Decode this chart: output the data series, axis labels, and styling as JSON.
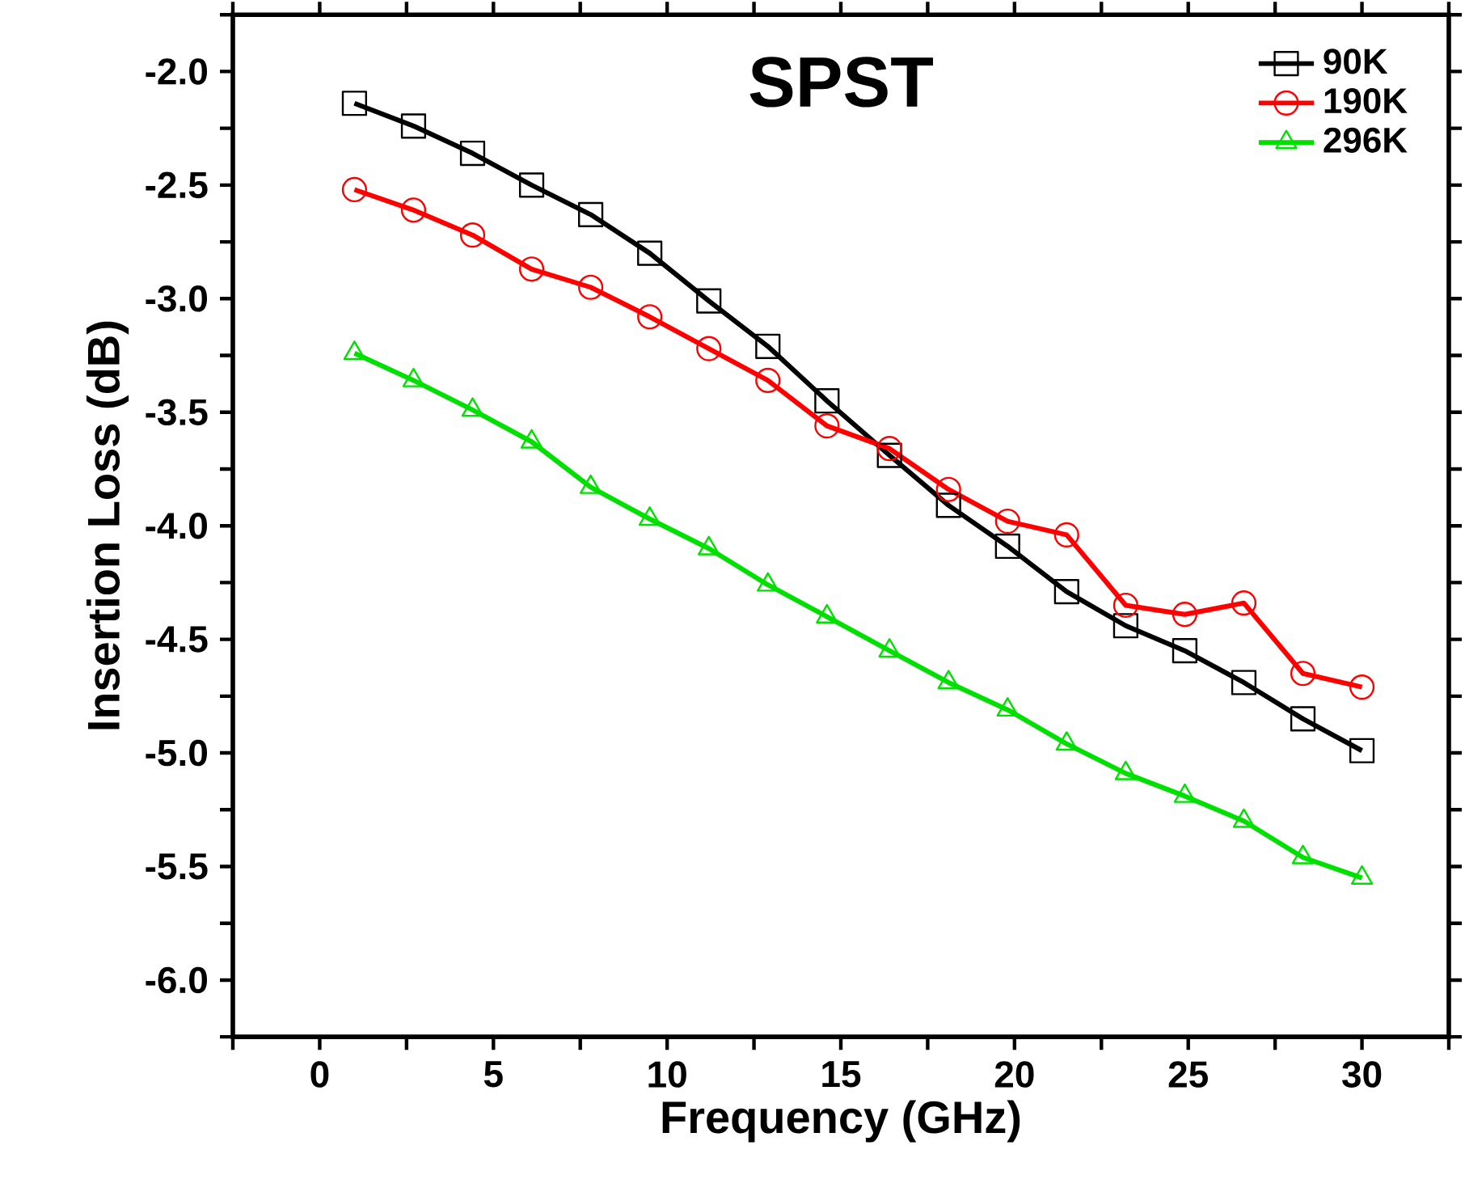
{
  "chart_data": {
    "type": "line",
    "title": "SPST",
    "xlabel": "Frequency (GHz)",
    "ylabel": "Insertion Loss (dB)",
    "x": [
      1.0,
      2.7,
      4.4,
      6.1,
      7.8,
      9.5,
      11.2,
      12.9,
      14.6,
      16.4,
      18.1,
      19.8,
      21.5,
      23.2,
      24.9,
      26.6,
      28.3,
      30.0
    ],
    "series": [
      {
        "name": "90K",
        "color": "#000000",
        "marker": "square",
        "values": [
          -2.14,
          -2.24,
          -2.36,
          -2.5,
          -2.63,
          -2.8,
          -3.01,
          -3.21,
          -3.45,
          -3.69,
          -3.91,
          -4.09,
          -4.29,
          -4.44,
          -4.55,
          -4.69,
          -4.85,
          -4.99
        ]
      },
      {
        "name": "190K",
        "color": "#ff0000",
        "marker": "circle",
        "values": [
          -2.52,
          -2.61,
          -2.72,
          -2.87,
          -2.95,
          -3.08,
          -3.22,
          -3.36,
          -3.56,
          -3.66,
          -3.84,
          -3.98,
          -4.04,
          -4.35,
          -4.39,
          -4.34,
          -4.65,
          -4.71
        ]
      },
      {
        "name": "296K",
        "color": "#00e000",
        "marker": "triangle",
        "values": [
          -3.24,
          -3.36,
          -3.49,
          -3.63,
          -3.83,
          -3.97,
          -4.1,
          -4.26,
          -4.4,
          -4.55,
          -4.69,
          -4.81,
          -4.96,
          -5.09,
          -5.19,
          -5.3,
          -5.46,
          -5.55
        ]
      }
    ],
    "xlim": [
      -2.5,
      32.5
    ],
    "xticks": [
      {
        "value": -2.5,
        "label": null
      },
      0,
      {
        "value": 2.5,
        "label": null
      },
      5,
      {
        "value": 7.5,
        "label": null
      },
      10,
      {
        "value": 12.5,
        "label": null
      },
      15,
      {
        "value": 17.5,
        "label": null
      },
      20,
      {
        "value": 22.5,
        "label": null
      },
      25,
      {
        "value": 27.5,
        "label": null
      },
      30,
      {
        "value": 32.5,
        "label": null
      }
    ],
    "ylim": [
      -6.25,
      -1.75
    ],
    "yticks": [
      {
        "value": -6.25,
        "label": null
      },
      {
        "value": -6.0,
        "label": "-6.0"
      },
      {
        "value": -5.75,
        "label": null
      },
      {
        "value": -5.5,
        "label": "-5.5"
      },
      {
        "value": -5.25,
        "label": null
      },
      {
        "value": -5.0,
        "label": "-5.0"
      },
      {
        "value": -4.75,
        "label": null
      },
      {
        "value": -4.5,
        "label": "-4.5"
      },
      {
        "value": -4.25,
        "label": null
      },
      {
        "value": -4.0,
        "label": "-4.0"
      },
      {
        "value": -3.75,
        "label": null
      },
      {
        "value": -3.5,
        "label": "-3.5"
      },
      {
        "value": -3.25,
        "label": null
      },
      {
        "value": -3.0,
        "label": "-3.0"
      },
      {
        "value": -2.75,
        "label": null
      },
      {
        "value": -2.5,
        "label": "-2.5"
      },
      {
        "value": -2.25,
        "label": null
      },
      {
        "value": -2.0,
        "label": "-2.0"
      },
      {
        "value": -1.75,
        "label": null
      }
    ],
    "legend": "top right",
    "grid": false,
    "line_style": "solid"
  }
}
